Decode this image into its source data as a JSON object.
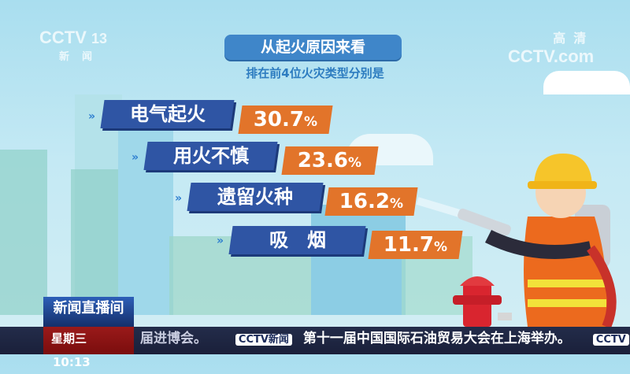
{
  "channel_logo": {
    "brand": "CCTV",
    "number": "13",
    "sub": "新闻"
  },
  "hd_logo": {
    "tag": "高清",
    "site": "CCTV.com"
  },
  "infographic": {
    "title": "从起火原因来看",
    "subtitle": "排在前4位火灾类型分别是",
    "items": [
      {
        "label": "电气起火",
        "value": "30.7",
        "unit": "%"
      },
      {
        "label": "用火不慎",
        "value": "23.6",
        "unit": "%"
      },
      {
        "label": "遗留火种",
        "value": "16.2",
        "unit": "%"
      },
      {
        "label": "吸　烟",
        "value": "11.7",
        "unit": "%"
      }
    ],
    "colors": {
      "label_bg": "#2f55a4",
      "value_bg": "#e2742a"
    }
  },
  "program": {
    "name": "新闻直播间",
    "day": "星期三",
    "time": "10:13"
  },
  "ticker": {
    "prev_fragment": "届进博会。",
    "logo": "CCTV新闻",
    "headline": "第十一届中国国际石油贸易大会在上海举办。",
    "next_logo": "CCTV"
  }
}
